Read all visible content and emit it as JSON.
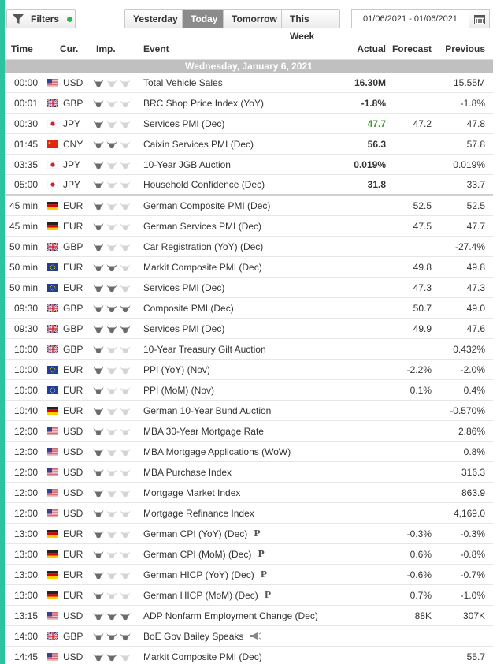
{
  "toolbar": {
    "filters_label": "Filters",
    "tabs": [
      "Yesterday",
      "Today",
      "Tomorrow",
      "This Week"
    ],
    "active_tab": "Today",
    "date_range": "01/06/2021 - 01/06/2021"
  },
  "table": {
    "headers": {
      "time": "Time",
      "currency": "Cur.",
      "importance": "Imp.",
      "event": "Event",
      "actual": "Actual",
      "forecast": "Forecast",
      "previous": "Previous"
    },
    "date_header": "Wednesday, January 6, 2021",
    "rows": [
      {
        "time": "00:00",
        "flag": "us",
        "cur": "USD",
        "imp": 1,
        "event": "Total Vehicle Sales",
        "actual": "16.30M",
        "forecast": "",
        "previous": "15.55M"
      },
      {
        "time": "00:01",
        "flag": "gb",
        "cur": "GBP",
        "imp": 1,
        "event": "BRC Shop Price Index (YoY)",
        "actual": "-1.8%",
        "forecast": "",
        "previous": "-1.8%"
      },
      {
        "time": "00:30",
        "flag": "jp",
        "cur": "JPY",
        "imp": 1,
        "event": "Services PMI (Dec)",
        "actual": "47.7",
        "actual_color": "green",
        "forecast": "47.2",
        "previous": "47.8"
      },
      {
        "time": "01:45",
        "flag": "cn",
        "cur": "CNY",
        "imp": 2,
        "event": "Caixin Services PMI (Dec)",
        "actual": "56.3",
        "forecast": "",
        "previous": "57.8"
      },
      {
        "time": "03:35",
        "flag": "jp",
        "cur": "JPY",
        "imp": 1,
        "event": "10-Year JGB Auction",
        "actual": "0.019%",
        "forecast": "",
        "previous": "0.019%"
      },
      {
        "time": "05:00",
        "flag": "jp",
        "cur": "JPY",
        "imp": 1,
        "event": "Household Confidence (Dec)",
        "actual": "31.8",
        "forecast": "",
        "previous": "33.7",
        "separator": true
      },
      {
        "time": "45 min",
        "flag": "de",
        "cur": "EUR",
        "imp": 1,
        "event": "German Composite PMI (Dec)",
        "actual": "",
        "forecast": "52.5",
        "previous": "52.5"
      },
      {
        "time": "45 min",
        "flag": "de",
        "cur": "EUR",
        "imp": 1,
        "event": "German Services PMI (Dec)",
        "actual": "",
        "forecast": "47.5",
        "previous": "47.7"
      },
      {
        "time": "50 min",
        "flag": "gb",
        "cur": "GBP",
        "imp": 1,
        "event": "Car Registration (YoY) (Dec)",
        "actual": "",
        "forecast": "",
        "previous": "-27.4%"
      },
      {
        "time": "50 min",
        "flag": "eu",
        "cur": "EUR",
        "imp": 2,
        "event": "Markit Composite PMI (Dec)",
        "actual": "",
        "forecast": "49.8",
        "previous": "49.8"
      },
      {
        "time": "50 min",
        "flag": "eu",
        "cur": "EUR",
        "imp": 2,
        "event": "Services PMI (Dec)",
        "actual": "",
        "forecast": "47.3",
        "previous": "47.3"
      },
      {
        "time": "09:30",
        "flag": "gb",
        "cur": "GBP",
        "imp": 3,
        "event": "Composite PMI (Dec)",
        "actual": "",
        "forecast": "50.7",
        "previous": "49.0"
      },
      {
        "time": "09:30",
        "flag": "gb",
        "cur": "GBP",
        "imp": 3,
        "event": "Services PMI (Dec)",
        "actual": "",
        "forecast": "49.9",
        "previous": "47.6"
      },
      {
        "time": "10:00",
        "flag": "gb",
        "cur": "GBP",
        "imp": 1,
        "event": "10-Year Treasury Gilt Auction",
        "actual": "",
        "forecast": "",
        "previous": "0.432%"
      },
      {
        "time": "10:00",
        "flag": "eu",
        "cur": "EUR",
        "imp": 1,
        "event": "PPI (YoY) (Nov)",
        "actual": "",
        "forecast": "-2.2%",
        "previous": "-2.0%"
      },
      {
        "time": "10:00",
        "flag": "eu",
        "cur": "EUR",
        "imp": 1,
        "event": "PPI (MoM) (Nov)",
        "actual": "",
        "forecast": "0.1%",
        "previous": "0.4%"
      },
      {
        "time": "10:40",
        "flag": "de",
        "cur": "EUR",
        "imp": 1,
        "event": "German 10-Year Bund Auction",
        "actual": "",
        "forecast": "",
        "previous": "-0.570%"
      },
      {
        "time": "12:00",
        "flag": "us",
        "cur": "USD",
        "imp": 1,
        "event": "MBA 30-Year Mortgage Rate",
        "actual": "",
        "forecast": "",
        "previous": "2.86%"
      },
      {
        "time": "12:00",
        "flag": "us",
        "cur": "USD",
        "imp": 1,
        "event": "MBA Mortgage Applications (WoW)",
        "actual": "",
        "forecast": "",
        "previous": "0.8%"
      },
      {
        "time": "12:00",
        "flag": "us",
        "cur": "USD",
        "imp": 1,
        "event": "MBA Purchase Index",
        "actual": "",
        "forecast": "",
        "previous": "316.3"
      },
      {
        "time": "12:00",
        "flag": "us",
        "cur": "USD",
        "imp": 1,
        "event": "Mortgage Market Index",
        "actual": "",
        "forecast": "",
        "previous": "863.9"
      },
      {
        "time": "12:00",
        "flag": "us",
        "cur": "USD",
        "imp": 1,
        "event": "Mortgage Refinance Index",
        "actual": "",
        "forecast": "",
        "previous": "4,169.0"
      },
      {
        "time": "13:00",
        "flag": "de",
        "cur": "EUR",
        "imp": 1,
        "event": "German CPI (YoY) (Dec)",
        "prelim": "P",
        "actual": "",
        "forecast": "-0.3%",
        "previous": "-0.3%"
      },
      {
        "time": "13:00",
        "flag": "de",
        "cur": "EUR",
        "imp": 1,
        "event": "German CPI (MoM) (Dec)",
        "prelim": "P",
        "actual": "",
        "forecast": "0.6%",
        "previous": "-0.8%"
      },
      {
        "time": "13:00",
        "flag": "de",
        "cur": "EUR",
        "imp": 1,
        "event": "German HICP (YoY) (Dec)",
        "prelim": "P",
        "actual": "",
        "forecast": "-0.6%",
        "previous": "-0.7%"
      },
      {
        "time": "13:00",
        "flag": "de",
        "cur": "EUR",
        "imp": 1,
        "event": "German HICP (MoM) (Dec)",
        "prelim": "P",
        "actual": "",
        "forecast": "0.7%",
        "previous": "-1.0%"
      },
      {
        "time": "13:15",
        "flag": "us",
        "cur": "USD",
        "imp": 3,
        "event": "ADP Nonfarm Employment Change (Dec)",
        "actual": "",
        "forecast": "88K",
        "previous": "307K"
      },
      {
        "time": "14:00",
        "flag": "gb",
        "cur": "GBP",
        "imp": 3,
        "event": "BoE Gov Bailey Speaks",
        "speech": true,
        "actual": "",
        "forecast": "",
        "previous": ""
      },
      {
        "time": "14:45",
        "flag": "us",
        "cur": "USD",
        "imp": 2,
        "event": "Markit Composite PMI (Dec)",
        "actual": "",
        "forecast": "",
        "previous": "55.7"
      }
    ]
  },
  "colors": {
    "accent": "#2cc3a0",
    "active_tab": "#8b8b8b",
    "date_header": "#c0c0c0",
    "positive": "#3aa12c",
    "filter_dot": "#2db84d"
  }
}
